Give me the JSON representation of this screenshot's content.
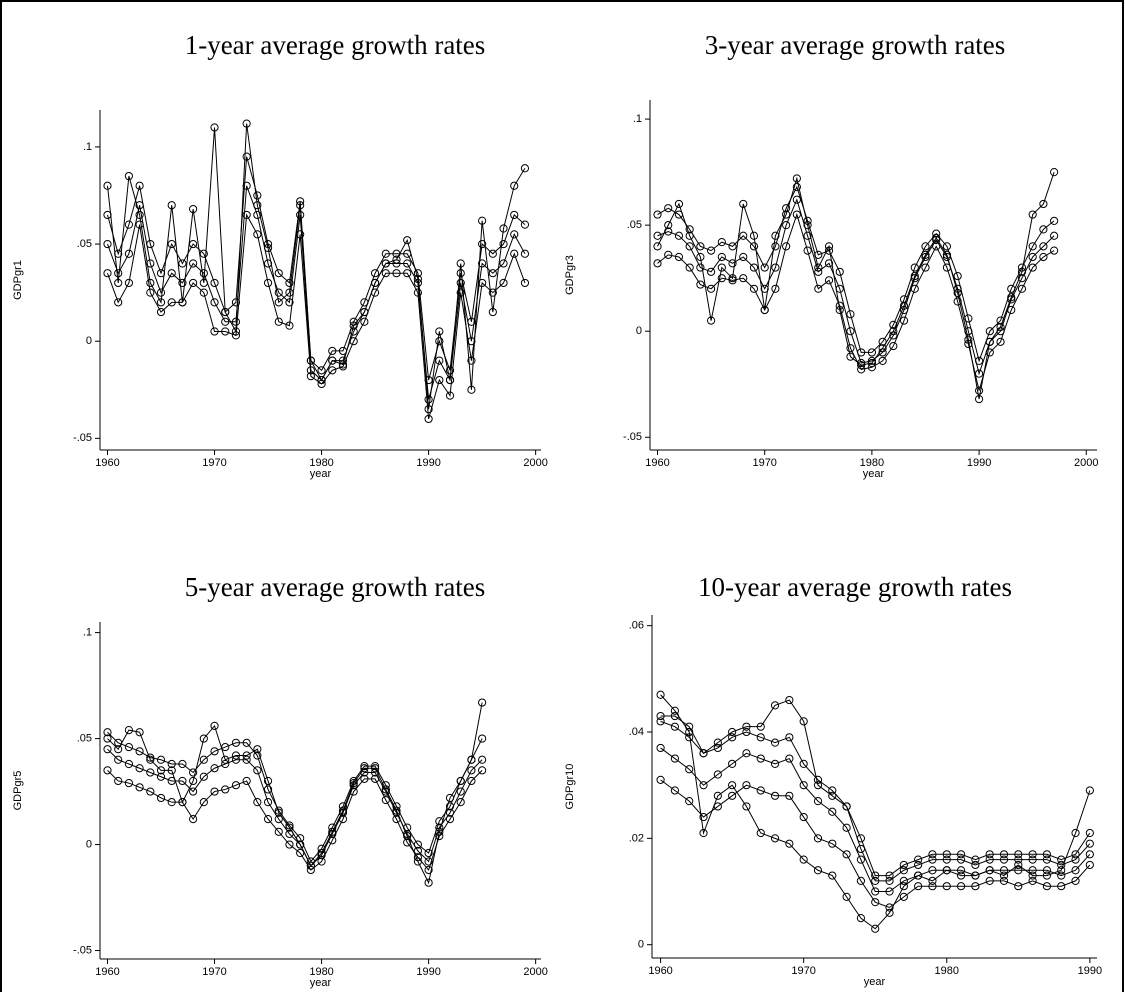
{
  "chart_data": [
    {
      "type": "line",
      "title": "1-year average growth rates",
      "x_label": "year",
      "y_label": "GDPgr1",
      "marker": "circle",
      "xlim": [
        1959.3,
        2000.5
      ],
      "ylim": [
        -0.056,
        0.119
      ],
      "xticks": [
        1960,
        1970,
        1980,
        1990,
        2000
      ],
      "yticks": [
        {
          "value": -0.05,
          "label": "-.05"
        },
        0,
        {
          "value": 0.05,
          "label": ".05"
        },
        {
          "value": 0.1,
          "label": ".1"
        }
      ],
      "x": [
        1960,
        1961,
        1962,
        1963,
        1964,
        1965,
        1966,
        1967,
        1968,
        1969,
        1970,
        1971,
        1972,
        1973,
        1974,
        1975,
        1976,
        1977,
        1978,
        1979,
        1980,
        1981,
        1982,
        1983,
        1984,
        1985,
        1986,
        1987,
        1988,
        1989,
        1990,
        1991,
        1992,
        1993,
        1994,
        1995,
        1996,
        1997,
        1998,
        1999
      ],
      "series": [
        {
          "color": "#000000",
          "values": [
            0.05,
            0.035,
            0.045,
            0.07,
            0.04,
            0.025,
            0.035,
            0.03,
            0.04,
            0.035,
            0.02,
            0.01,
            0.01,
            0.08,
            0.065,
            0.04,
            0.025,
            0.02,
            0.065,
            -0.015,
            -0.02,
            -0.01,
            -0.01,
            0.005,
            0.015,
            0.03,
            0.04,
            0.04,
            0.04,
            0.03,
            -0.03,
            -0.01,
            -0.02,
            0.03,
            0,
            0.04,
            0.035,
            0.04,
            0.055,
            0.045
          ]
        },
        {
          "color": "#000000",
          "values": [
            0.065,
            0.045,
            0.06,
            0.08,
            0.05,
            0.035,
            0.05,
            0.04,
            0.05,
            0.045,
            0.03,
            0.015,
            0.02,
            0.095,
            0.075,
            0.05,
            0.035,
            0.03,
            0.072,
            -0.01,
            -0.015,
            -0.005,
            -0.005,
            0.01,
            0.02,
            0.035,
            0.045,
            0.045,
            0.045,
            0.035,
            -0.02,
            0,
            -0.015,
            0.035,
            0.01,
            0.05,
            0.045,
            0.05,
            0.065,
            0.06
          ]
        },
        {
          "color": "#000000",
          "values": [
            0.035,
            0.02,
            0.03,
            0.06,
            0.025,
            0.015,
            0.02,
            0.02,
            0.03,
            0.025,
            0.005,
            0.005,
            0.003,
            0.065,
            0.055,
            0.03,
            0.01,
            0.008,
            0.055,
            -0.018,
            -0.022,
            -0.015,
            -0.013,
            0,
            0.01,
            0.025,
            0.035,
            0.035,
            0.035,
            0.025,
            -0.04,
            -0.02,
            -0.028,
            0.025,
            -0.01,
            0.03,
            0.025,
            0.03,
            0.045,
            0.03
          ]
        },
        {
          "color": "#000000",
          "values": [
            0.08,
            0.03,
            0.085,
            0.065,
            0.03,
            0.02,
            0.07,
            0.02,
            0.068,
            0.03,
            0.11,
            0.015,
            0.005,
            0.112,
            0.07,
            0.048,
            0.02,
            0.025,
            0.07,
            -0.01,
            -0.02,
            -0.01,
            -0.012,
            0.008,
            0.015,
            0.03,
            0.04,
            0.042,
            0.052,
            0.032,
            -0.035,
            0.005,
            -0.02,
            0.04,
            -0.025,
            0.062,
            0.015,
            0.058,
            0.08,
            0.089
          ]
        }
      ]
    },
    {
      "type": "line",
      "title": "3-year average growth rates",
      "x_label": "year",
      "y_label": "GDPgr3",
      "marker": "circle",
      "xlim": [
        1959.3,
        2001
      ],
      "ylim": [
        -0.056,
        0.109
      ],
      "xticks": [
        1960,
        1970,
        1980,
        1990,
        2000
      ],
      "yticks": [
        {
          "value": -0.05,
          "label": "-.05"
        },
        0,
        {
          "value": 0.05,
          "label": ".05"
        },
        {
          "value": 0.1,
          "label": ".1"
        }
      ],
      "x": [
        1960,
        1961,
        1962,
        1963,
        1964,
        1965,
        1966,
        1967,
        1968,
        1969,
        1970,
        1971,
        1972,
        1973,
        1974,
        1975,
        1976,
        1977,
        1978,
        1979,
        1980,
        1981,
        1982,
        1983,
        1984,
        1985,
        1986,
        1987,
        1988,
        1989,
        1990,
        1991,
        1992,
        1993,
        1994,
        1995,
        1996,
        1997
      ],
      "series": [
        {
          "color": "#000000",
          "values": [
            0.045,
            0.047,
            0.045,
            0.04,
            0.03,
            0.028,
            0.035,
            0.032,
            0.035,
            0.03,
            0.02,
            0.03,
            0.05,
            0.062,
            0.045,
            0.028,
            0.032,
            0.02,
            0,
            -0.015,
            -0.014,
            -0.01,
            -0.002,
            0.01,
            0.025,
            0.035,
            0.043,
            0.035,
            0.02,
            0,
            -0.02,
            -0.005,
            0,
            0.015,
            0.025,
            0.035,
            0.04,
            0.045
          ]
        },
        {
          "color": "#000000",
          "values": [
            0.055,
            0.058,
            0.055,
            0.048,
            0.04,
            0.038,
            0.042,
            0.04,
            0.045,
            0.04,
            0.03,
            0.04,
            0.058,
            0.068,
            0.052,
            0.036,
            0.038,
            0.028,
            0.008,
            -0.01,
            -0.01,
            -0.005,
            0.003,
            0.015,
            0.03,
            0.04,
            0.046,
            0.04,
            0.026,
            0.006,
            -0.014,
            0,
            0.005,
            0.02,
            0.03,
            0.04,
            0.048,
            0.052
          ]
        },
        {
          "color": "#000000",
          "values": [
            0.032,
            0.036,
            0.035,
            0.03,
            0.022,
            0.02,
            0.025,
            0.024,
            0.025,
            0.02,
            0.01,
            0.02,
            0.04,
            0.055,
            0.038,
            0.02,
            0.024,
            0.012,
            -0.008,
            -0.018,
            -0.017,
            -0.014,
            -0.007,
            0.005,
            0.02,
            0.03,
            0.04,
            0.03,
            0.014,
            -0.006,
            -0.028,
            -0.01,
            -0.005,
            0.01,
            0.02,
            0.03,
            0.035,
            0.038
          ]
        },
        {
          "color": "#000000",
          "values": [
            0.04,
            0.05,
            0.06,
            0.045,
            0.035,
            0.005,
            0.03,
            0.025,
            0.06,
            0.045,
            0.01,
            0.045,
            0.055,
            0.072,
            0.05,
            0.03,
            0.04,
            0.01,
            -0.012,
            -0.016,
            -0.015,
            -0.008,
            0,
            0.012,
            0.026,
            0.036,
            0.044,
            0.036,
            0.018,
            -0.004,
            -0.032,
            -0.005,
            0.002,
            0.016,
            0.028,
            0.055,
            0.06,
            0.075
          ]
        }
      ]
    },
    {
      "type": "line",
      "title": "5-year average growth rates",
      "x_label": "year",
      "y_label": "GDPgr5",
      "marker": "circle",
      "xlim": [
        1959.3,
        2000.5
      ],
      "ylim": [
        -0.054,
        0.105
      ],
      "xticks": [
        1960,
        1970,
        1980,
        1990,
        2000
      ],
      "yticks": [
        {
          "value": -0.05,
          "label": "-.05"
        },
        0,
        {
          "value": 0.05,
          "label": ".05"
        },
        {
          "value": 0.1,
          "label": ".1"
        }
      ],
      "x": [
        1960,
        1961,
        1962,
        1963,
        1964,
        1965,
        1966,
        1967,
        1968,
        1969,
        1970,
        1971,
        1972,
        1973,
        1974,
        1975,
        1976,
        1977,
        1978,
        1979,
        1980,
        1981,
        1982,
        1983,
        1984,
        1985,
        1986,
        1987,
        1988,
        1989,
        1990,
        1991,
        1992,
        1993,
        1994,
        1995
      ],
      "series": [
        {
          "color": "#000000",
          "values": [
            0.045,
            0.04,
            0.038,
            0.036,
            0.034,
            0.032,
            0.03,
            0.03,
            0.025,
            0.032,
            0.036,
            0.038,
            0.04,
            0.04,
            0.035,
            0.02,
            0.012,
            0.005,
            0,
            -0.01,
            -0.005,
            0.005,
            0.015,
            0.028,
            0.034,
            0.034,
            0.025,
            0.015,
            0.005,
            -0.003,
            -0.008,
            0.008,
            0.015,
            0.025,
            0.035,
            0.04
          ]
        },
        {
          "color": "#000000",
          "values": [
            0.053,
            0.048,
            0.046,
            0.044,
            0.041,
            0.04,
            0.038,
            0.038,
            0.034,
            0.04,
            0.044,
            0.046,
            0.048,
            0.048,
            0.042,
            0.026,
            0.016,
            0.009,
            0.003,
            -0.008,
            -0.002,
            0.008,
            0.018,
            0.03,
            0.037,
            0.037,
            0.028,
            0.018,
            0.008,
            0,
            -0.004,
            0.011,
            0.018,
            0.03,
            0.04,
            0.05
          ]
        },
        {
          "color": "#000000",
          "values": [
            0.035,
            0.03,
            0.029,
            0.027,
            0.025,
            0.022,
            0.02,
            0.02,
            0.012,
            0.02,
            0.025,
            0.026,
            0.028,
            0.03,
            0.02,
            0.012,
            0.006,
            0,
            -0.004,
            -0.012,
            -0.008,
            0.002,
            0.012,
            0.025,
            0.031,
            0.031,
            0.021,
            0.012,
            0.001,
            -0.006,
            -0.012,
            0.004,
            0.012,
            0.02,
            0.03,
            0.035
          ]
        },
        {
          "color": "#000000",
          "values": [
            0.05,
            0.045,
            0.054,
            0.053,
            0.04,
            0.035,
            0.035,
            0.02,
            0.03,
            0.05,
            0.056,
            0.04,
            0.042,
            0.042,
            0.045,
            0.03,
            0.015,
            0.008,
            0,
            -0.01,
            -0.004,
            0.006,
            0.016,
            0.029,
            0.036,
            0.036,
            0.026,
            0.016,
            0.004,
            -0.008,
            -0.018,
            0.006,
            0.022,
            0.03,
            0.04,
            0.067
          ]
        }
      ]
    },
    {
      "type": "line",
      "title": "10-year average growth rates",
      "x_label": "year",
      "y_label": "GDPgr10",
      "marker": "circle",
      "xlim": [
        1959.4,
        1990.5
      ],
      "ylim": [
        -0.0025,
        0.062
      ],
      "xticks": [
        1960,
        1970,
        1980,
        1990
      ],
      "yticks": [
        0,
        {
          "value": 0.02,
          "label": ".02"
        },
        {
          "value": 0.04,
          "label": ".04"
        },
        {
          "value": 0.06,
          "label": ".06"
        }
      ],
      "x": [
        1960,
        1961,
        1962,
        1963,
        1964,
        1965,
        1966,
        1967,
        1968,
        1969,
        1970,
        1971,
        1972,
        1973,
        1974,
        1975,
        1976,
        1977,
        1978,
        1979,
        1980,
        1981,
        1982,
        1983,
        1984,
        1985,
        1986,
        1987,
        1988,
        1989,
        1990
      ],
      "series": [
        {
          "color": "#000000",
          "values": [
            0.037,
            0.035,
            0.033,
            0.03,
            0.032,
            0.034,
            0.036,
            0.035,
            0.034,
            0.035,
            0.03,
            0.027,
            0.025,
            0.022,
            0.016,
            0.01,
            0.01,
            0.012,
            0.013,
            0.014,
            0.014,
            0.014,
            0.013,
            0.014,
            0.014,
            0.014,
            0.014,
            0.014,
            0.013,
            0.014,
            0.017
          ]
        },
        {
          "color": "#000000",
          "values": [
            0.042,
            0.041,
            0.039,
            0.036,
            0.037,
            0.039,
            0.04,
            0.039,
            0.038,
            0.039,
            0.034,
            0.031,
            0.029,
            0.026,
            0.02,
            0.013,
            0.013,
            0.015,
            0.016,
            0.017,
            0.017,
            0.017,
            0.016,
            0.017,
            0.017,
            0.017,
            0.017,
            0.017,
            0.016,
            0.017,
            0.021
          ]
        },
        {
          "color": "#000000",
          "values": [
            0.031,
            0.029,
            0.027,
            0.024,
            0.026,
            0.028,
            0.03,
            0.029,
            0.028,
            0.028,
            0.024,
            0.02,
            0.019,
            0.017,
            0.012,
            0.008,
            0.007,
            0.009,
            0.011,
            0.011,
            0.011,
            0.011,
            0.011,
            0.012,
            0.012,
            0.011,
            0.012,
            0.011,
            0.011,
            0.012,
            0.015
          ]
        },
        {
          "color": "#000000",
          "values": [
            0.047,
            0.044,
            0.04,
            0.021,
            0.028,
            0.03,
            0.026,
            0.021,
            0.02,
            0.019,
            0.016,
            0.014,
            0.013,
            0.009,
            0.005,
            0.003,
            0.006,
            0.011,
            0.013,
            0.012,
            0.014,
            0.013,
            0.013,
            0.014,
            0.013,
            0.015,
            0.013,
            0.013,
            0.014,
            0.021,
            0.029
          ]
        },
        {
          "color": "#000000",
          "values": [
            0.043,
            0.043,
            0.041,
            0.036,
            0.038,
            0.04,
            0.041,
            0.041,
            0.045,
            0.046,
            0.042,
            0.03,
            0.028,
            0.026,
            0.018,
            0.012,
            0.012,
            0.014,
            0.015,
            0.016,
            0.016,
            0.016,
            0.015,
            0.016,
            0.016,
            0.016,
            0.016,
            0.016,
            0.015,
            0.016,
            0.019
          ]
        }
      ]
    }
  ]
}
